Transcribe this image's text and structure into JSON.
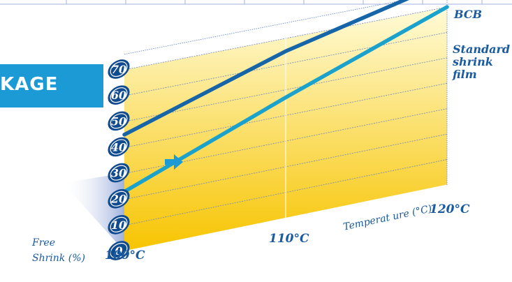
{
  "banner": {
    "text": "KAGE"
  },
  "y_axis_title": [
    "Free",
    "Shrink (%)"
  ],
  "x_axis_title": "Temperat  ure (°C)",
  "colors": {
    "bcb_line": "#1665a8",
    "standard_line": "#1aa2cc",
    "banner": "#1b9ad6",
    "arrow": "#1b9ad6",
    "panel_top": "#fffbd8",
    "panel_bottom": "#f7c400",
    "tick_oval": "#104a8f"
  },
  "icons": {
    "arrow": "right-arrow-icon"
  },
  "chart_data": {
    "type": "line",
    "title": "",
    "xlabel": "Temperat  ure (°C)",
    "ylabel": "Free Shrink (%)",
    "x": [
      "100°C",
      "110°C",
      "120°C"
    ],
    "x_values": [
      100,
      110,
      120
    ],
    "xlim": [
      100,
      120
    ],
    "ylim": [
      0,
      70
    ],
    "y_ticks": [
      0,
      10,
      20,
      30,
      40,
      50,
      60,
      70
    ],
    "grid": true,
    "series": [
      {
        "name": "BCB",
        "values": [
          45,
          65,
          80
        ]
      },
      {
        "name": "Standard shrink film",
        "values": [
          23,
          47,
          70
        ]
      }
    ],
    "legend_position": "right"
  }
}
